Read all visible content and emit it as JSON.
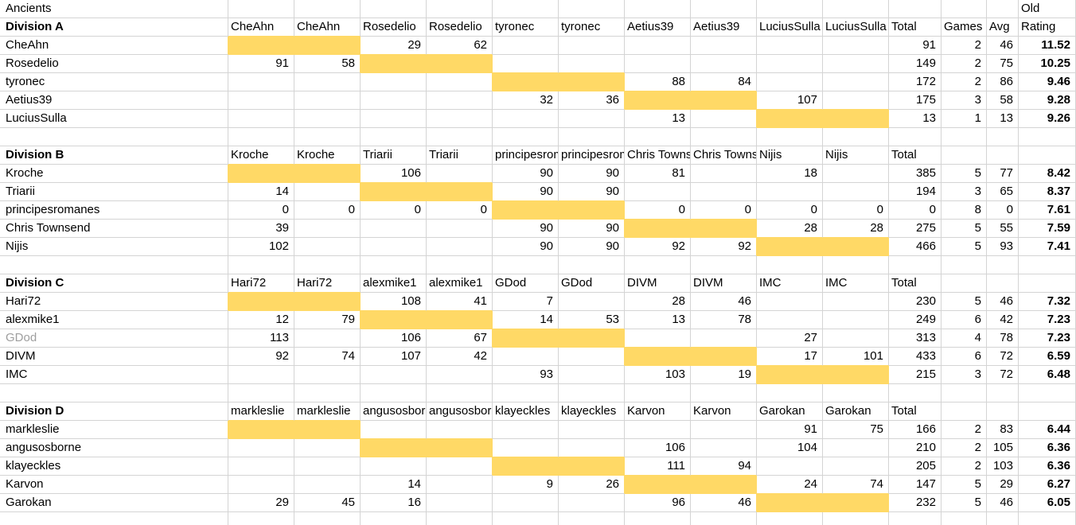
{
  "sheet": {
    "title": "Ancients",
    "stats_headers": {
      "total": "Total",
      "games": "Games",
      "avg": "Avg",
      "rating_top": "Old",
      "rating": "Rating"
    },
    "colors": {
      "highlight": "#FFD966",
      "gridline": "#D4D4D4",
      "muted_player": "#9E9E9E"
    }
  },
  "divisions": [
    {
      "label": "Division A",
      "opponents": [
        "CheAhn",
        "CheAhn",
        "Rosedelio",
        "Rosedelio",
        "tyronec",
        "tyronec",
        "Aetius39",
        "Aetius39",
        "LuciusSulla",
        "LuciusSulla"
      ],
      "rows": [
        {
          "player": "CheAhn",
          "self_pair": 0,
          "scores": [
            "",
            "",
            "29",
            "62",
            "",
            "",
            "",
            "",
            "",
            ""
          ],
          "total": "91",
          "games": "2",
          "avg": "46",
          "old_rating": "11.52"
        },
        {
          "player": "Rosedelio",
          "self_pair": 1,
          "scores": [
            "91",
            "58",
            "",
            "",
            "",
            "",
            "",
            "",
            "",
            ""
          ],
          "total": "149",
          "games": "2",
          "avg": "75",
          "old_rating": "10.25"
        },
        {
          "player": "tyronec",
          "self_pair": 2,
          "scores": [
            "",
            "",
            "",
            "",
            "",
            "",
            "88",
            "84",
            "",
            ""
          ],
          "total": "172",
          "games": "2",
          "avg": "86",
          "old_rating": "9.46"
        },
        {
          "player": "Aetius39",
          "self_pair": 3,
          "scores": [
            "",
            "",
            "",
            "",
            "32",
            "36",
            "",
            "",
            "107",
            ""
          ],
          "total": "175",
          "games": "3",
          "avg": "58",
          "old_rating": "9.28"
        },
        {
          "player": "LuciusSulla",
          "self_pair": 4,
          "scores": [
            "",
            "",
            "",
            "",
            "",
            "",
            "13",
            "",
            "",
            ""
          ],
          "total": "13",
          "games": "1",
          "avg": "13",
          "old_rating": "9.26"
        }
      ]
    },
    {
      "label": "Division B",
      "opponents": [
        "Kroche",
        "Kroche",
        "Triarii",
        "Triarii",
        "principesromanes",
        "principesromanes",
        "Chris Townsend",
        "Chris Townsend",
        "Nijis",
        "Nijis"
      ],
      "rows": [
        {
          "player": "Kroche",
          "self_pair": 0,
          "scores": [
            "",
            "",
            "106",
            "",
            "90",
            "90",
            "81",
            "",
            "18",
            ""
          ],
          "total": "385",
          "games": "5",
          "avg": "77",
          "old_rating": "8.42"
        },
        {
          "player": "Triarii",
          "self_pair": 1,
          "scores": [
            "14",
            "",
            "",
            "",
            "90",
            "90",
            "",
            "",
            "",
            ""
          ],
          "total": "194",
          "games": "3",
          "avg": "65",
          "old_rating": "8.37"
        },
        {
          "player": "principesromanes",
          "self_pair": 2,
          "scores": [
            "0",
            "0",
            "0",
            "0",
            "",
            "",
            "0",
            "0",
            "0",
            "0"
          ],
          "total": "0",
          "games": "8",
          "avg": "0",
          "old_rating": "7.61"
        },
        {
          "player": "Chris Townsend",
          "self_pair": 3,
          "scores": [
            "39",
            "",
            "",
            "",
            "90",
            "90",
            "",
            "",
            "28",
            "28"
          ],
          "total": "275",
          "games": "5",
          "avg": "55",
          "old_rating": "7.59"
        },
        {
          "player": "Nijis",
          "self_pair": 4,
          "scores": [
            "102",
            "",
            "",
            "",
            "90",
            "90",
            "92",
            "92",
            "",
            ""
          ],
          "total": "466",
          "games": "5",
          "avg": "93",
          "old_rating": "7.41"
        }
      ]
    },
    {
      "label": "Division C",
      "opponents": [
        "Hari72",
        "Hari72",
        "alexmike1",
        "alexmike1",
        "GDod",
        "GDod",
        "DIVM",
        "DIVM",
        "IMC",
        "IMC"
      ],
      "rows": [
        {
          "player": "Hari72",
          "self_pair": 0,
          "scores": [
            "",
            "",
            "108",
            "41",
            "7",
            "",
            "28",
            "46",
            "",
            ""
          ],
          "total": "230",
          "games": "5",
          "avg": "46",
          "old_rating": "7.32"
        },
        {
          "player": "alexmike1",
          "self_pair": 1,
          "scores": [
            "12",
            "79",
            "",
            "",
            "14",
            "53",
            "13",
            "78",
            "",
            ""
          ],
          "total": "249",
          "games": "6",
          "avg": "42",
          "old_rating": "7.23"
        },
        {
          "player": "GDod",
          "self_pair": 2,
          "muted": true,
          "scores": [
            "113",
            "",
            "106",
            "67",
            "",
            "",
            "",
            "",
            "27",
            ""
          ],
          "total": "313",
          "games": "4",
          "avg": "78",
          "old_rating": "7.23"
        },
        {
          "player": "DIVM",
          "self_pair": 3,
          "scores": [
            "92",
            "74",
            "107",
            "42",
            "",
            "",
            "",
            "",
            "17",
            "101"
          ],
          "total": "433",
          "games": "6",
          "avg": "72",
          "old_rating": "6.59"
        },
        {
          "player": "IMC",
          "self_pair": 4,
          "scores": [
            "",
            "",
            "",
            "",
            "93",
            "",
            "103",
            "19",
            "",
            ""
          ],
          "total": "215",
          "games": "3",
          "avg": "72",
          "old_rating": "6.48"
        }
      ]
    },
    {
      "label": "Division D",
      "opponents": [
        "markleslie",
        "markleslie",
        "angusosborne",
        "angusosborne",
        "klayeckles",
        "klayeckles",
        "Karvon",
        "Karvon",
        "Garokan",
        "Garokan"
      ],
      "rows": [
        {
          "player": "markleslie",
          "self_pair": 0,
          "scores": [
            "",
            "",
            "",
            "",
            "",
            "",
            "",
            "",
            "91",
            "75"
          ],
          "total": "166",
          "games": "2",
          "avg": "83",
          "old_rating": "6.44"
        },
        {
          "player": "angusosborne",
          "self_pair": 1,
          "scores": [
            "",
            "",
            "",
            "",
            "",
            "",
            "106",
            "",
            "104",
            ""
          ],
          "total": "210",
          "games": "2",
          "avg": "105",
          "old_rating": "6.36"
        },
        {
          "player": "klayeckles",
          "self_pair": 2,
          "scores": [
            "",
            "",
            "",
            "",
            "",
            "",
            "111",
            "94",
            "",
            ""
          ],
          "total": "205",
          "games": "2",
          "avg": "103",
          "old_rating": "6.36"
        },
        {
          "player": "Karvon",
          "self_pair": 3,
          "scores": [
            "",
            "",
            "14",
            "",
            "9",
            "26",
            "",
            "",
            "24",
            "74"
          ],
          "total": "147",
          "games": "5",
          "avg": "29",
          "old_rating": "6.27"
        },
        {
          "player": "Garokan",
          "self_pair": 4,
          "scores": [
            "29",
            "45",
            "16",
            "",
            "",
            "",
            "96",
            "46",
            "",
            ""
          ],
          "total": "232",
          "games": "5",
          "avg": "46",
          "old_rating": "6.05"
        }
      ]
    }
  ]
}
